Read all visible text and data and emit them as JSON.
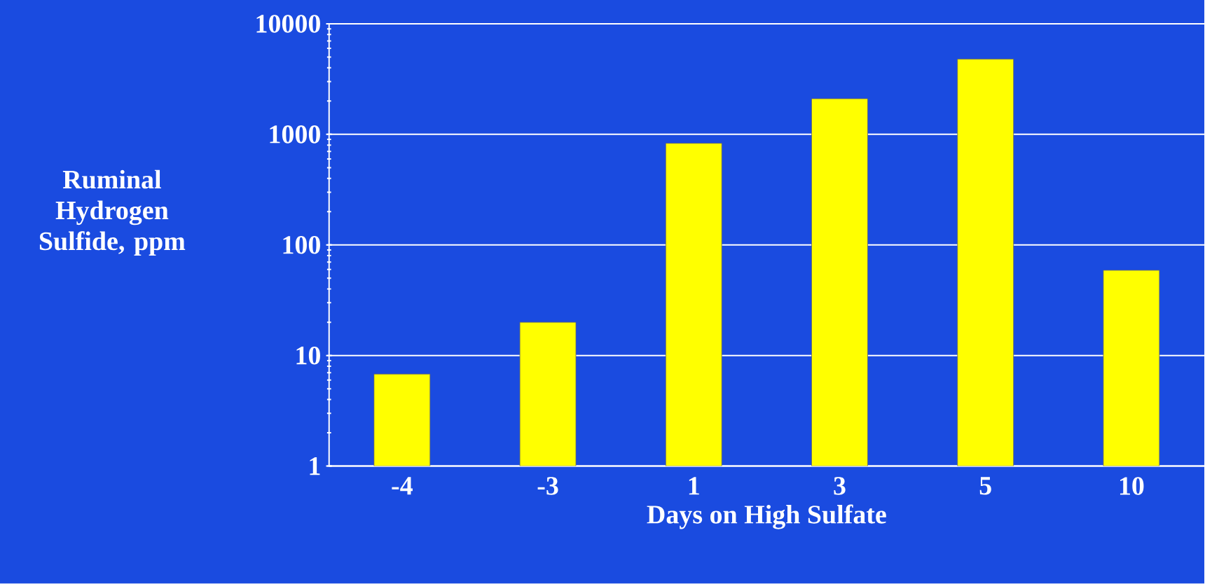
{
  "chart_data": {
    "type": "bar",
    "xlabel": "Days on High Sulfate",
    "ylabel": "Ruminal Hydrogen Sulfide, ppm",
    "categories": [
      "-4",
      "-3",
      "1",
      "3",
      "5",
      "10"
    ],
    "values": [
      6.8,
      20,
      830,
      2100,
      4800,
      59
    ],
    "color": "#ffff00",
    "ylim": [
      1,
      10000
    ],
    "yticks": [
      1,
      10,
      100,
      1000,
      10000
    ],
    "log": true,
    "grid": "y"
  }
}
